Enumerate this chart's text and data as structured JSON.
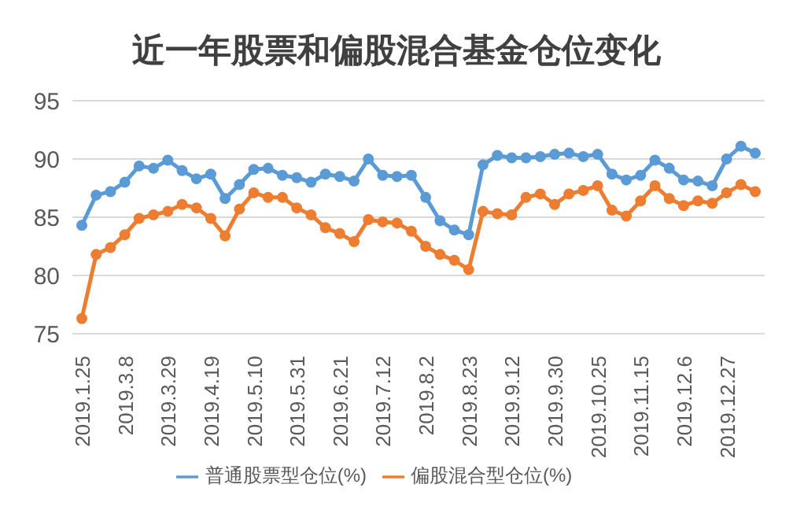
{
  "chart_data": {
    "type": "line",
    "title": "近一年股票和偏股混合基金仓位变化",
    "categories": [
      "2019.1.25",
      null,
      null,
      "2019.3.8",
      null,
      null,
      "2019.3.29",
      null,
      null,
      "2019.4.19",
      null,
      null,
      "2019.5.10",
      null,
      null,
      "2019.5.31",
      null,
      null,
      "2019.6.21",
      null,
      null,
      "2019.7.12",
      null,
      null,
      "2019.8.2",
      null,
      null,
      "2019.8.23",
      null,
      null,
      "2019.9.12",
      null,
      null,
      "2019.9.30",
      null,
      null,
      "2019.10.25",
      null,
      null,
      "2019.11.15",
      null,
      null,
      "2019.12.6",
      null,
      null,
      "2019.12.27",
      null,
      null
    ],
    "series": [
      {
        "name": "普通股票型仓位(%)",
        "color": "#5b9bd5",
        "values": [
          84.3,
          86.9,
          87.2,
          88.0,
          89.4,
          89.2,
          89.9,
          89.0,
          88.3,
          88.7,
          86.6,
          87.8,
          89.1,
          89.2,
          88.6,
          88.4,
          88.0,
          88.7,
          88.5,
          88.1,
          90.0,
          88.6,
          88.5,
          88.6,
          86.7,
          84.7,
          83.9,
          83.5,
          89.5,
          90.3,
          90.1,
          90.1,
          90.2,
          90.4,
          90.5,
          90.2,
          90.4,
          88.7,
          88.2,
          88.6,
          89.9,
          89.2,
          88.2,
          88.1,
          87.7,
          90.0,
          91.1,
          90.5
        ]
      },
      {
        "name": "偏股混合型仓位(%)",
        "color": "#ed7d31",
        "values": [
          76.3,
          81.8,
          82.4,
          83.5,
          84.9,
          85.2,
          85.5,
          86.1,
          85.8,
          84.9,
          83.4,
          85.7,
          87.1,
          86.7,
          86.7,
          85.8,
          85.2,
          84.1,
          83.6,
          82.9,
          84.8,
          84.6,
          84.5,
          83.8,
          82.5,
          81.8,
          81.3,
          80.5,
          85.5,
          85.3,
          85.2,
          86.7,
          87.0,
          86.1,
          87.0,
          87.3,
          87.7,
          85.6,
          85.1,
          86.4,
          87.7,
          86.6,
          86.0,
          86.4,
          86.2,
          87.1,
          87.8,
          87.2
        ]
      }
    ],
    "ylim": [
      75,
      95
    ],
    "yticks": [
      75,
      80,
      85,
      90,
      95
    ],
    "grid": "y",
    "legend": "bottom",
    "marker": "circle",
    "line_style": "solid"
  }
}
